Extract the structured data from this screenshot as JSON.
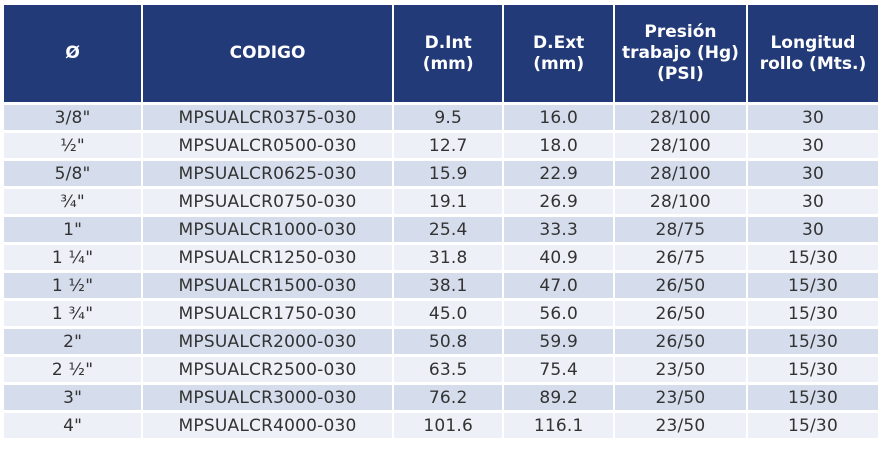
{
  "headers": [
    "Ø",
    "CODIGO",
    "D.Int (mm)",
    "D.Ext (mm)",
    "Presión trabajo (Hg) (PSI)",
    "Longitud rollo (Mts.)"
  ],
  "rows": [
    {
      "size": "3/8\"",
      "code": "MPSUALCR0375-030",
      "dint": "9.5",
      "dext": "16.0",
      "pressure": "28/100",
      "length": "30"
    },
    {
      "size": "½\"",
      "code": "MPSUALCR0500-030",
      "dint": "12.7",
      "dext": "18.0",
      "pressure": "28/100",
      "length": "30"
    },
    {
      "size": "5/8\"",
      "code": "MPSUALCR0625-030",
      "dint": "15.9",
      "dext": "22.9",
      "pressure": "28/100",
      "length": "30"
    },
    {
      "size": "¾\"",
      "code": "MPSUALCR0750-030",
      "dint": "19.1",
      "dext": "26.9",
      "pressure": "28/100",
      "length": "30"
    },
    {
      "size": "1\"",
      "code": "MPSUALCR1000-030",
      "dint": "25.4",
      "dext": "33.3",
      "pressure": "28/75",
      "length": "30"
    },
    {
      "size": "1 ¼\"",
      "code": "MPSUALCR1250-030",
      "dint": "31.8",
      "dext": "40.9",
      "pressure": "26/75",
      "length": "15/30"
    },
    {
      "size": "1 ½\"",
      "code": "MPSUALCR1500-030",
      "dint": "38.1",
      "dext": "47.0",
      "pressure": "26/50",
      "length": "15/30"
    },
    {
      "size": "1 ¾\"",
      "code": "MPSUALCR1750-030",
      "dint": "45.0",
      "dext": "56.0",
      "pressure": "26/50",
      "length": "15/30"
    },
    {
      "size": "2\"",
      "code": "MPSUALCR2000-030",
      "dint": "50.8",
      "dext": "59.9",
      "pressure": "26/50",
      "length": "15/30"
    },
    {
      "size": "2 ½\"",
      "code": "MPSUALCR2500-030",
      "dint": "63.5",
      "dext": "75.4",
      "pressure": "23/50",
      "length": "15/30"
    },
    {
      "size": "3\"",
      "code": "MPSUALCR3000-030",
      "dint": "76.2",
      "dext": "89.2",
      "pressure": "23/50",
      "length": "15/30"
    },
    {
      "size": "4\"",
      "code": "MPSUALCR4000-030",
      "dint": "101.6",
      "dext": "116.1",
      "pressure": "23/50",
      "length": "15/30"
    }
  ],
  "colors": {
    "header_bg": "#233a78",
    "row_odd": "#d5dcec",
    "row_even": "#edf0f7"
  }
}
